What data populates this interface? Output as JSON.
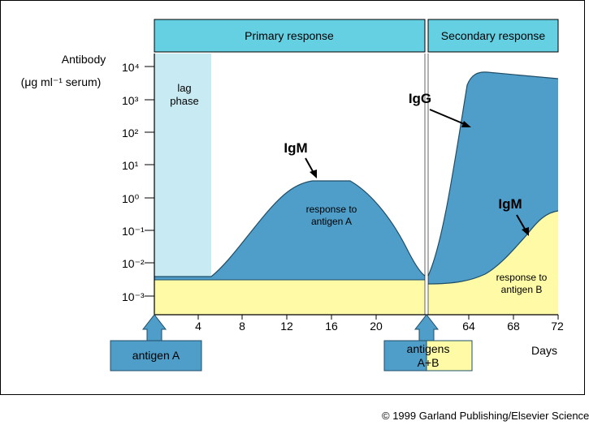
{
  "header": {
    "primary": "Primary response",
    "secondary": "Secondary response"
  },
  "y_axis": {
    "title_line1": "Antibody",
    "title_line2": "(μg ml⁻¹ serum)",
    "ticks": [
      "10⁴",
      "10³",
      "10²",
      "10¹",
      "10⁰",
      "10⁻¹",
      "10⁻²",
      "10⁻³"
    ]
  },
  "x_axis": {
    "ticks": [
      "4",
      "8",
      "12",
      "16",
      "20",
      "64",
      "68",
      "72"
    ],
    "label": "Days"
  },
  "annotations": {
    "lag_line1": "lag",
    "lag_line2": "phase",
    "igg": "IgG",
    "igm_primary": "IgM",
    "igm_secondary": "IgM",
    "response_a_line1": "response to",
    "response_a_line2": "antigen A",
    "response_b_line1": "response to",
    "response_b_line2": "antigen B"
  },
  "callouts": {
    "antigen_a": "antigen A",
    "antigens_ab_line1": "antigens",
    "antigens_ab_line2": "A+B"
  },
  "colors": {
    "header": "#66d0e3",
    "lag": "#c8eaf2",
    "response": "#4f9dc9",
    "baseline": "#fffaa6"
  },
  "copyright": "© 1999 Garland Publishing/Elsevier Science"
}
